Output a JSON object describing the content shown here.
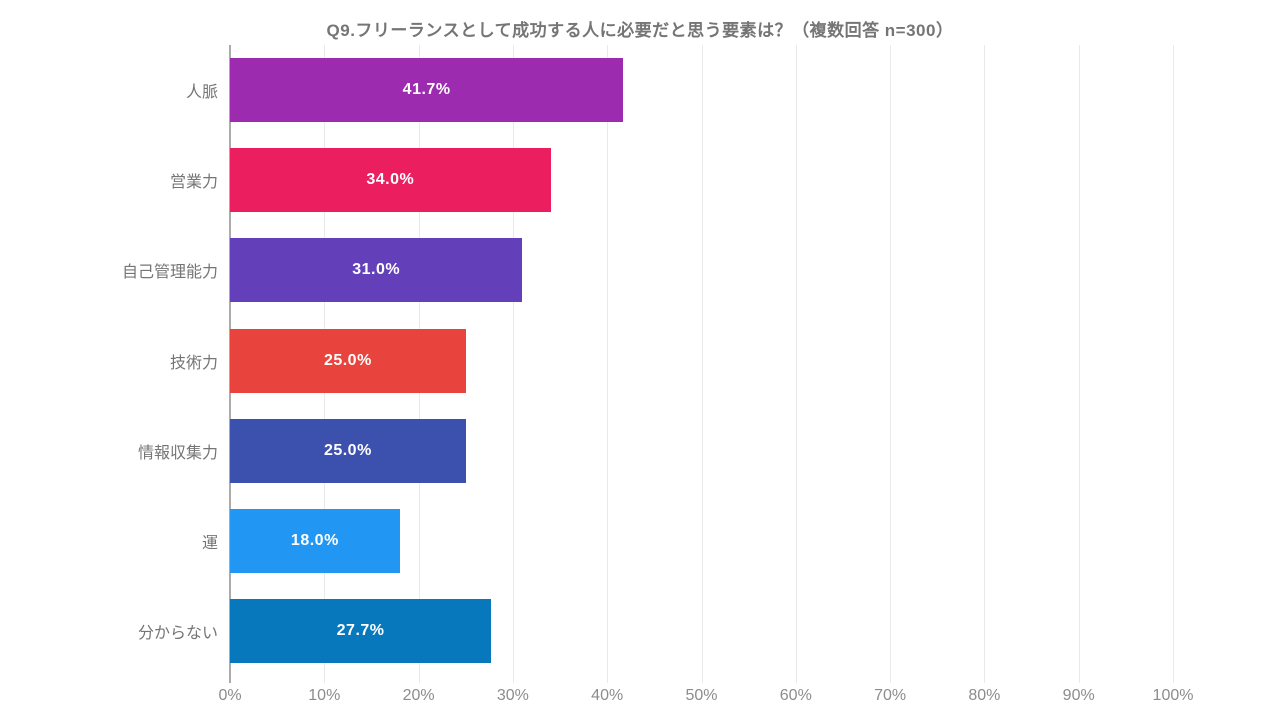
{
  "chart_data": {
    "type": "bar",
    "orientation": "horizontal",
    "title": "Q9.フリーランスとして成功する人に必要だと思う要素は？（複数回答 n=300）",
    "categories": [
      "人脈",
      "営業力",
      "自己管理能力",
      "技術力",
      "情報収集力",
      "運",
      "分からない"
    ],
    "values": [
      41.7,
      34.0,
      31.0,
      25.0,
      25.0,
      18.0,
      27.7
    ],
    "value_labels": [
      "41.7%",
      "34.0%",
      "31.0%",
      "25.0%",
      "25.0%",
      "18.0%",
      "27.7%"
    ],
    "bar_colors": [
      "#9c2bb0",
      "#eb1e5f",
      "#6340ba",
      "#e8433d",
      "#3c50ae",
      "#2196f3",
      "#0878bd"
    ],
    "xlabel": "",
    "ylabel": "",
    "xlim": [
      0,
      100
    ],
    "x_tick_values": [
      0,
      10,
      20,
      30,
      40,
      50,
      60,
      70,
      80,
      90,
      100
    ],
    "x_tick_labels": [
      "0%",
      "10%",
      "20%",
      "30%",
      "40%",
      "50%",
      "60%",
      "70%",
      "80%",
      "90%",
      "100%"
    ],
    "grid": "vertical",
    "legend": "none"
  },
  "style": {
    "grid_color": "#e9e9e9",
    "axis_color": "#ababab",
    "title_color": "#757575",
    "category_label_color": "#757575",
    "tick_label_color": "#8c8c8c",
    "value_label_color": "#ffffff",
    "background": "#ffffff"
  }
}
